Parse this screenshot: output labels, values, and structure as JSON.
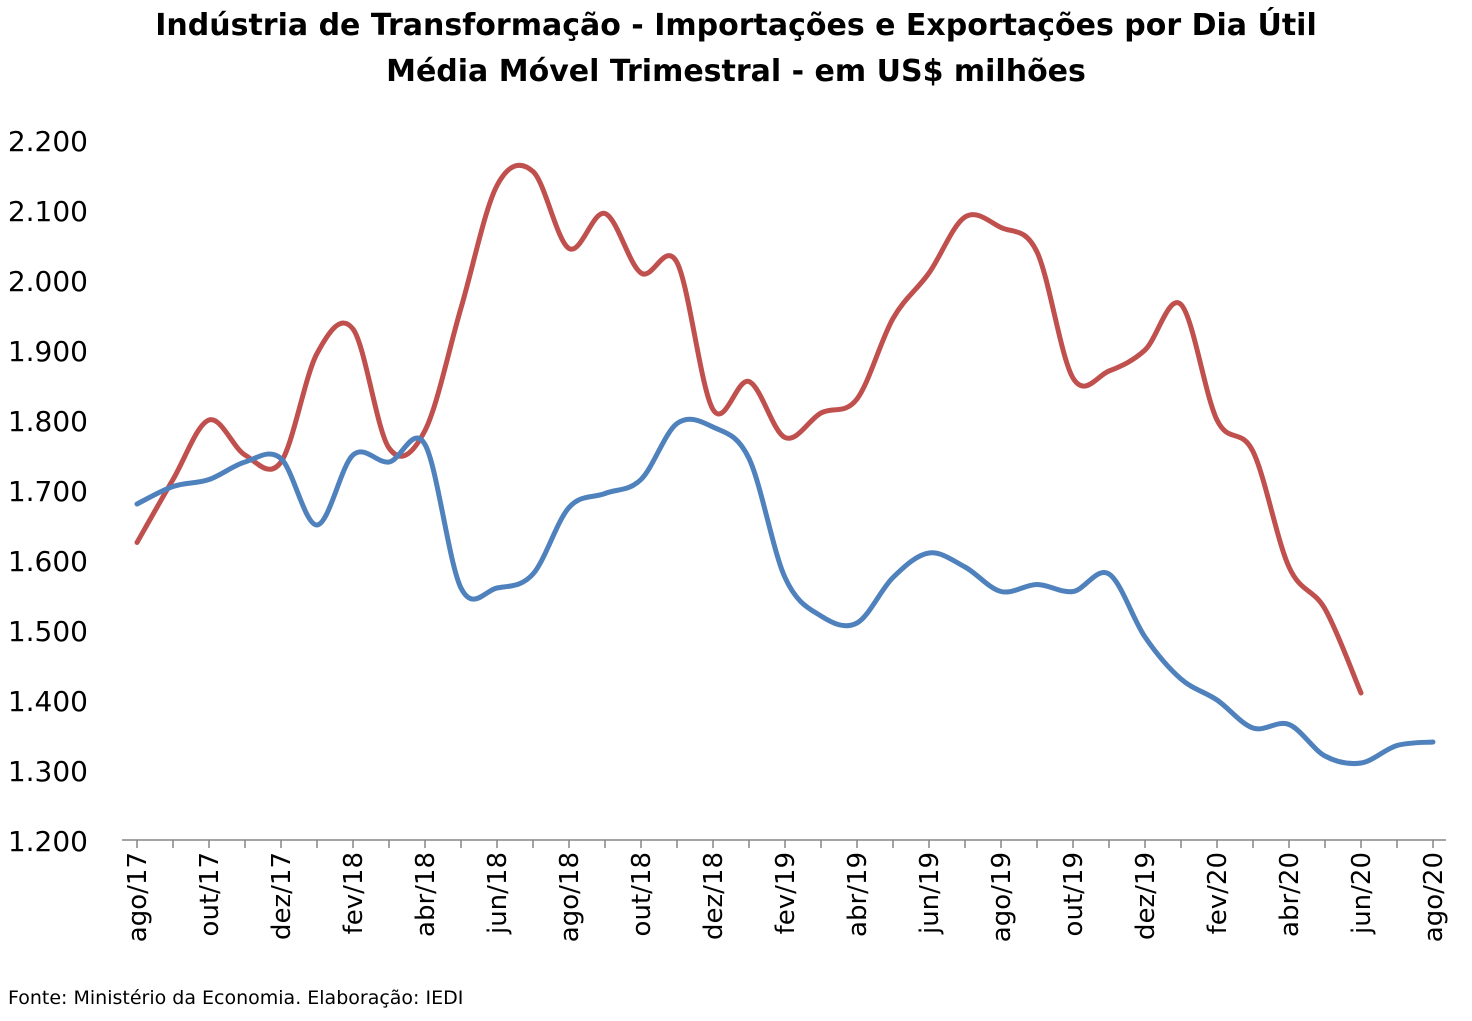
{
  "title": {
    "line1": "Indústria de Transformação - Importações e Exportações por Dia Útil",
    "line2": "Média Móvel Trimestral - em US$ milhões"
  },
  "source": "Fonte: Ministério da Economia. Elaboração: IEDI",
  "colors": {
    "red": "#C0504D",
    "blue": "#4F81BD"
  },
  "chart_data": {
    "type": "line",
    "ylim": [
      1200,
      2200
    ],
    "yticks": [
      "1.200",
      "1.300",
      "1.400",
      "1.500",
      "1.600",
      "1.700",
      "1.800",
      "1.900",
      "2.000",
      "2.100",
      "2.200"
    ],
    "yticks_values": [
      1200,
      1300,
      1400,
      1500,
      1600,
      1700,
      1800,
      1900,
      2000,
      2100,
      2200
    ],
    "x": [
      "ago/17",
      "set/17",
      "out/17",
      "nov/17",
      "dez/17",
      "jan/18",
      "fev/18",
      "mar/18",
      "abr/18",
      "mai/18",
      "jun/18",
      "jul/18",
      "ago/18",
      "set/18",
      "out/18",
      "nov/18",
      "dez/18",
      "jan/19",
      "fev/19",
      "mar/19",
      "abr/19",
      "mai/19",
      "jun/19",
      "jul/19",
      "ago/19",
      "set/19",
      "out/19",
      "nov/19",
      "dez/19",
      "jan/20",
      "fev/20",
      "mar/20",
      "abr/20",
      "mai/20",
      "jun/20",
      "jul/20",
      "ago/20"
    ],
    "xtick_labels": [
      "ago/17",
      "out/17",
      "dez/17",
      "fev/18",
      "abr/18",
      "jun/18",
      "ago/18",
      "out/18",
      "dez/18",
      "fev/19",
      "abr/19",
      "jun/19",
      "ago/19",
      "out/19",
      "dez/19",
      "fev/20",
      "abr/20",
      "jun/20",
      "ago/20"
    ],
    "grid": false,
    "legend": "none",
    "series": [
      {
        "color": "#C0504D",
        "values": [
          1625,
          1715,
          1800,
          1750,
          1740,
          1895,
          1930,
          1760,
          1785,
          1960,
          2135,
          2155,
          2045,
          2095,
          2010,
          2025,
          1815,
          1855,
          1775,
          1810,
          1830,
          1945,
          2010,
          2090,
          2075,
          2040,
          1860,
          1870,
          1900,
          1965,
          1800,
          1755,
          1590,
          1530,
          1410,
          null,
          null
        ]
      },
      {
        "color": "#4F81BD",
        "values": [
          1680,
          1705,
          1715,
          1740,
          1745,
          1650,
          1750,
          1740,
          1765,
          1560,
          1560,
          1580,
          1675,
          1695,
          1715,
          1795,
          1790,
          1745,
          1575,
          1520,
          1510,
          1575,
          1610,
          1590,
          1555,
          1565,
          1555,
          1580,
          1490,
          1430,
          1400,
          1360,
          1365,
          1320,
          1310,
          1335,
          1340
        ]
      }
    ]
  }
}
